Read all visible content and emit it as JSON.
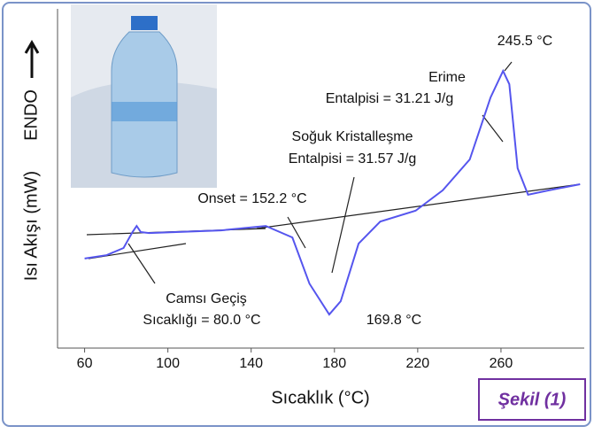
{
  "chart_data": {
    "type": "line",
    "x_label": "Sıcaklık (°C)",
    "y_label": "Isı Akışı (mW)",
    "y_direction_label": "ENDO",
    "figure_label": "Şekil (1)",
    "x": [
      60,
      70.6,
      78.7,
      83,
      85,
      87,
      91,
      104,
      125.5,
      147,
      159.8,
      168,
      177.5,
      183,
      191.6,
      202,
      219,
      232,
      245,
      255,
      261,
      264,
      268,
      273,
      283,
      298
    ],
    "values": [
      26.4,
      27.4,
      29.5,
      34.2,
      36,
      34.2,
      33.9,
      34.2,
      34.7,
      36,
      32.6,
      19,
      9.9,
      13.8,
      30.8,
      37.3,
      40.5,
      46.5,
      55.6,
      73.9,
      81.7,
      77.8,
      53,
      45.2,
      46.5,
      48.3
    ],
    "color": "#5555ee",
    "xlim": [
      47,
      300
    ],
    "ylim": [
      0,
      100
    ],
    "xticks": [
      60,
      100,
      140,
      180,
      220,
      260
    ],
    "annotations": [
      "245.5 °C",
      "Erime",
      "Entalpisi = 31.21 J/g",
      "Soğuk Kristalleşme",
      "Entalpisi = 31.57 J/g",
      "Onset = 152.2 °C",
      "Camsı Geçiş",
      "Sıcaklığı = 80.0 °C",
      "169.8 °C"
    ]
  }
}
